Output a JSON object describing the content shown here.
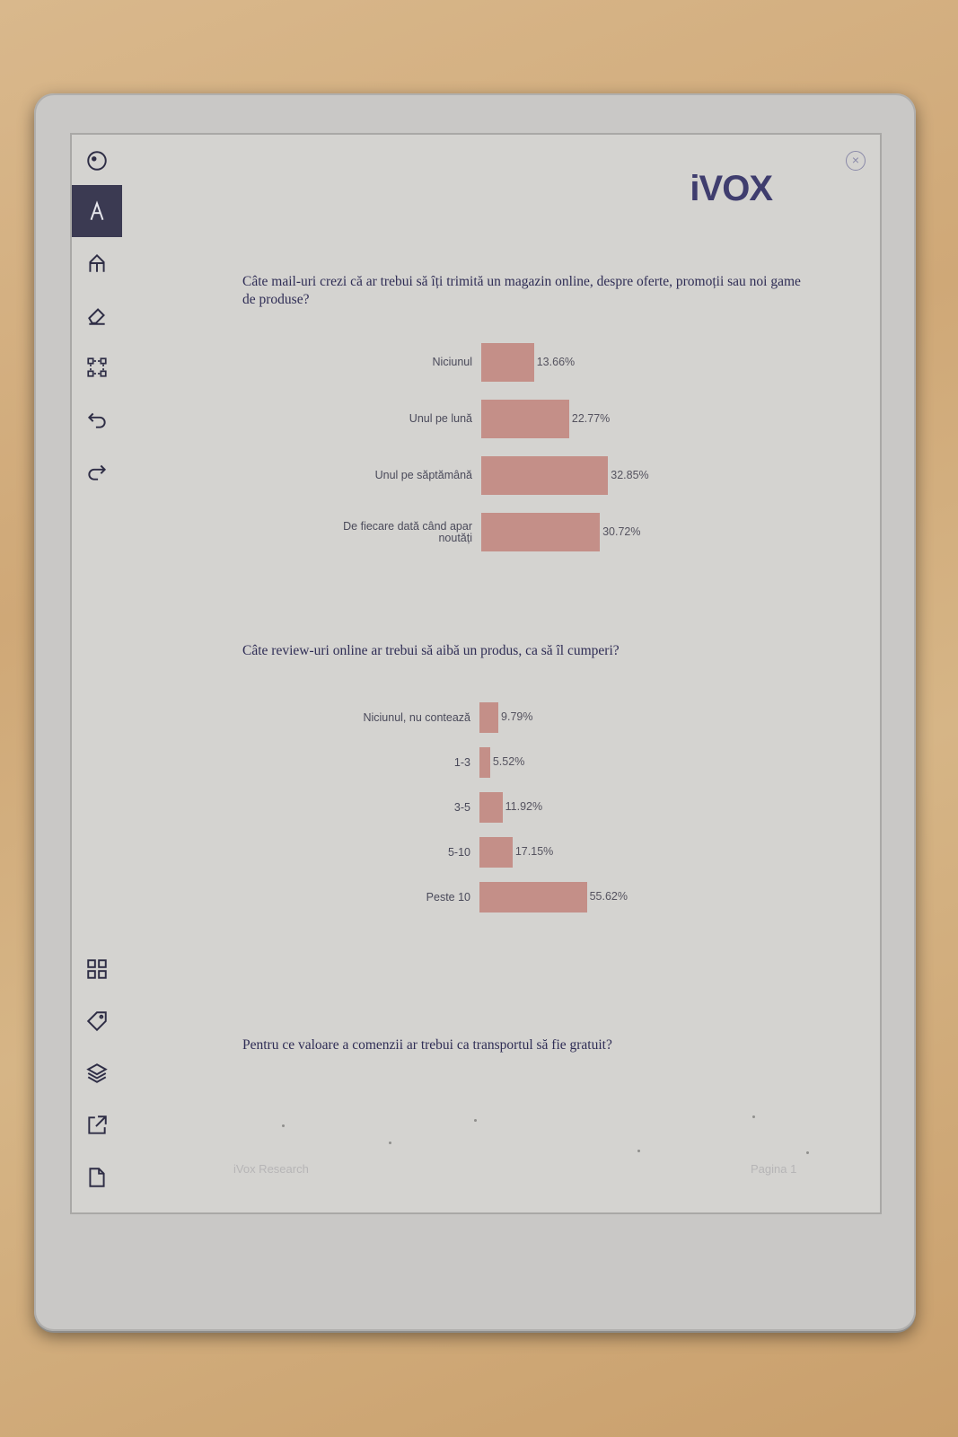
{
  "toolbar": {
    "items": [
      {
        "name": "menu-toggle-icon",
        "icon": "circle-dot"
      },
      {
        "name": "pen-tool-icon",
        "icon": "pen-active"
      },
      {
        "name": "marker-tool-icon",
        "icon": "marker"
      },
      {
        "name": "eraser-tool-icon",
        "icon": "eraser"
      },
      {
        "name": "selection-tool-icon",
        "icon": "select"
      },
      {
        "name": "undo-icon",
        "icon": "undo"
      },
      {
        "name": "redo-icon",
        "icon": "redo"
      },
      {
        "name": "page-overview-icon",
        "icon": "grid"
      },
      {
        "name": "tag-icon",
        "icon": "tag"
      },
      {
        "name": "layers-icon",
        "icon": "layers"
      },
      {
        "name": "share-icon",
        "icon": "export"
      },
      {
        "name": "document-icon",
        "icon": "page"
      }
    ]
  },
  "header": {
    "logo_text": "iVOX",
    "close_symbol": "×"
  },
  "questions": {
    "q1": "Câte mail-uri crezi că ar trebui să îți trimită un magazin online, despre oferte, promoții sau noi game de produse?",
    "q2": "Câte review-uri online ar trebui să aibă un produs, ca să îl cumperi?",
    "q3": "Pentru ce valoare a comenzii ar trebui ca transportul să fie gratuit?"
  },
  "chart_data": [
    {
      "type": "bar",
      "orientation": "horizontal",
      "categories": [
        "Niciunul",
        "Unul pe lună",
        "Unul pe săptămână",
        "De fiecare dată când apar noutăți"
      ],
      "values": [
        13.66,
        22.77,
        32.85,
        30.72
      ],
      "value_labels": [
        "13.66%",
        "22.77%",
        "32.85%",
        "30.72%"
      ],
      "color": "#c48f88"
    },
    {
      "type": "bar",
      "orientation": "horizontal",
      "categories": [
        "Niciunul, nu contează",
        "1-3",
        "3-5",
        "5-10",
        "Peste 10"
      ],
      "values": [
        9.79,
        5.52,
        11.92,
        17.15,
        55.62
      ],
      "value_labels": [
        "9.79%",
        "5.52%",
        "11.92%",
        "17.15%",
        "55.62%"
      ],
      "color": "#c48f88"
    }
  ],
  "footer": {
    "left": "iVox Research",
    "right": "Pagina 1"
  }
}
